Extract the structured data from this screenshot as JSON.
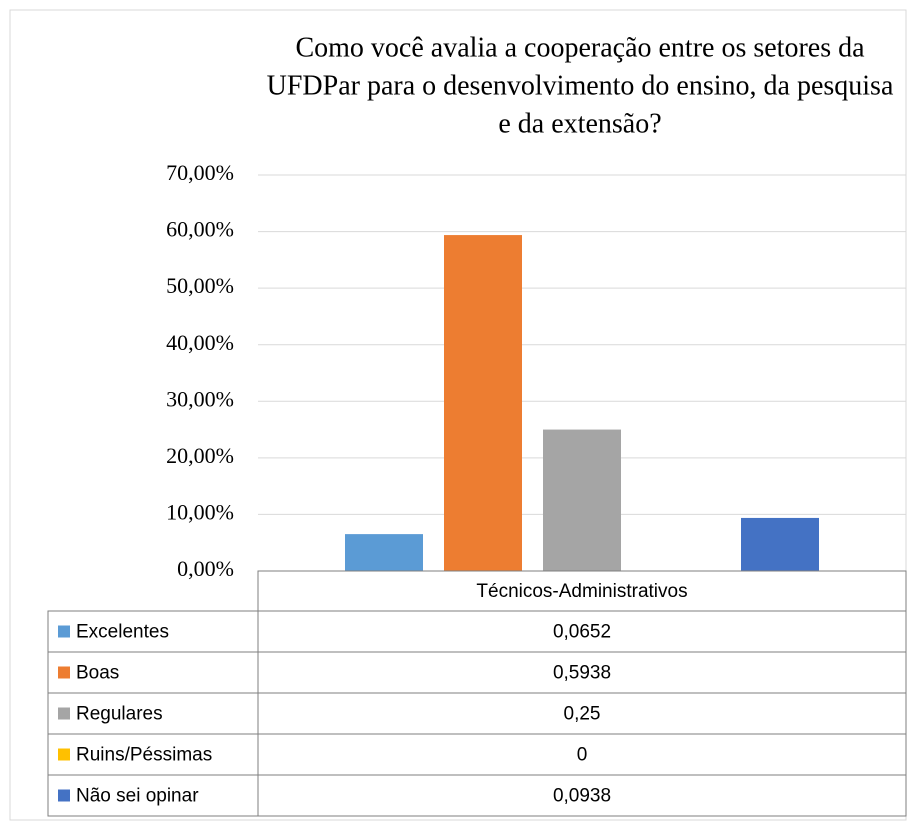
{
  "chart_data": {
    "type": "bar",
    "title": [
      "Como você avalia a cooperação entre os setores da",
      "UFDPar para o desenvolvimento do ensino, da pesquisa",
      "e da extensão?"
    ],
    "categories": [
      "Técnicos-Administrativos"
    ],
    "series": [
      {
        "name": "Excelentes",
        "color": "#5b9bd5",
        "values": [
          6.52
        ],
        "value_labels": [
          "0,0652"
        ]
      },
      {
        "name": "Boas",
        "color": "#ed7d31",
        "values": [
          59.38
        ],
        "value_labels": [
          "0,5938"
        ]
      },
      {
        "name": "Regulares",
        "color": "#a5a5a5",
        "values": [
          25
        ],
        "value_labels": [
          "0,25"
        ]
      },
      {
        "name": "Ruins/Péssimas",
        "color": "#ffc000",
        "values": [
          0
        ],
        "value_labels": [
          "0"
        ]
      },
      {
        "name": "Não sei opinar",
        "color": "#4472c4",
        "values": [
          9.38
        ],
        "value_labels": [
          "0,0938"
        ]
      }
    ],
    "ylim": [
      0,
      70
    ],
    "yticks": [
      {
        "value": 0,
        "label": "0,00%"
      },
      {
        "value": 10,
        "label": "10,00%"
      },
      {
        "value": 20,
        "label": "20,00%"
      },
      {
        "value": 30,
        "label": "30,00%"
      },
      {
        "value": 40,
        "label": "40,00%"
      },
      {
        "value": 50,
        "label": "50,00%"
      },
      {
        "value": 60,
        "label": "60,00%"
      },
      {
        "value": 70,
        "label": "70,00%"
      }
    ],
    "grid": true
  }
}
